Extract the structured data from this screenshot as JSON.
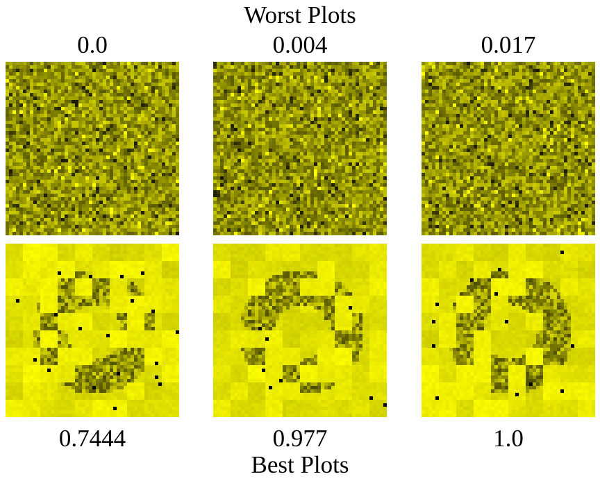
{
  "worst": {
    "title": "Worst Plots",
    "scores": [
      "0.0",
      "0.004",
      "0.017"
    ]
  },
  "best": {
    "title": "Best Plots",
    "scores": [
      "0.7444",
      "0.977",
      "1.0"
    ]
  },
  "colors": {
    "background": "#ffffff",
    "pixel_base": "#ffff00",
    "worst_tone": "#8a8a00",
    "best_tone": "#e8e800",
    "dark_pixel": "#000000"
  }
}
